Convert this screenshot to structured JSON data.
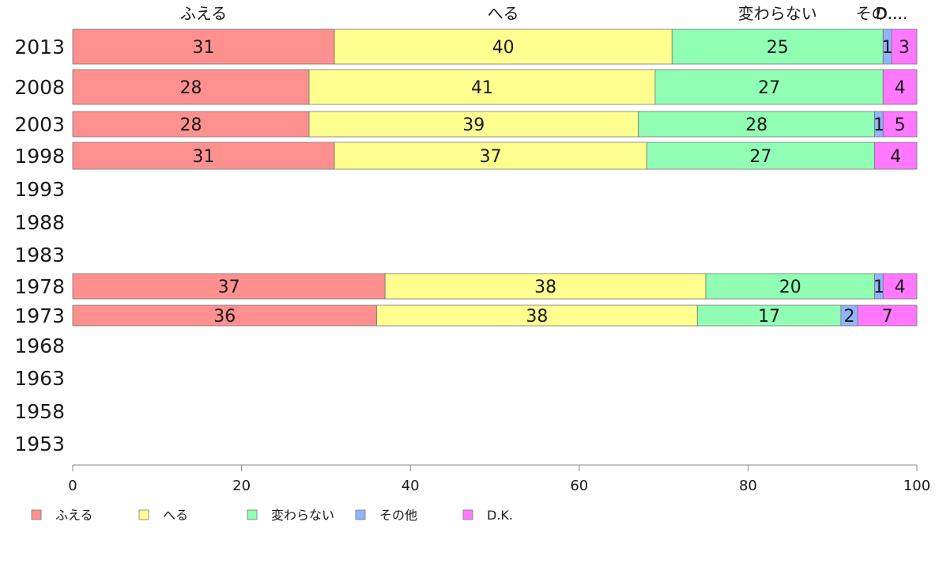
{
  "chart_data": {
    "type": "bar",
    "orientation": "horizontal",
    "stacked": true,
    "categories": [
      "2013",
      "2008",
      "2003",
      "1998",
      "1993",
      "1988",
      "1983",
      "1978",
      "1973",
      "1968",
      "1963",
      "1958",
      "1953"
    ],
    "series": [
      {
        "name": "ふえる",
        "color": "#ff9090",
        "values": [
          31,
          28,
          28,
          31,
          null,
          null,
          null,
          37,
          36,
          null,
          null,
          null,
          null
        ]
      },
      {
        "name": "へる",
        "color": "#ffff90",
        "values": [
          40,
          41,
          39,
          37,
          null,
          null,
          null,
          38,
          38,
          null,
          null,
          null,
          null
        ]
      },
      {
        "name": "変わらない",
        "color": "#90ffb4",
        "values": [
          25,
          27,
          28,
          27,
          null,
          null,
          null,
          20,
          17,
          null,
          null,
          null,
          null
        ]
      },
      {
        "name": "その他",
        "color": "#90b4ff",
        "values": [
          1,
          0,
          1,
          0,
          null,
          null,
          null,
          1,
          2,
          null,
          null,
          null,
          null
        ]
      },
      {
        "name": "D.K.",
        "color": "#ff78ff",
        "values": [
          3,
          4,
          5,
          4,
          null,
          null,
          null,
          4,
          7,
          null,
          null,
          null,
          null
        ]
      }
    ],
    "top_labels": [
      "ふえる",
      "へる",
      "変わらない",
      "その...",
      "D...."
    ],
    "xlim": [
      0,
      100
    ],
    "xticks": [
      "0",
      "20",
      "40",
      "60",
      "80",
      "100"
    ],
    "grid": false,
    "legend_position": "bottom-left"
  }
}
